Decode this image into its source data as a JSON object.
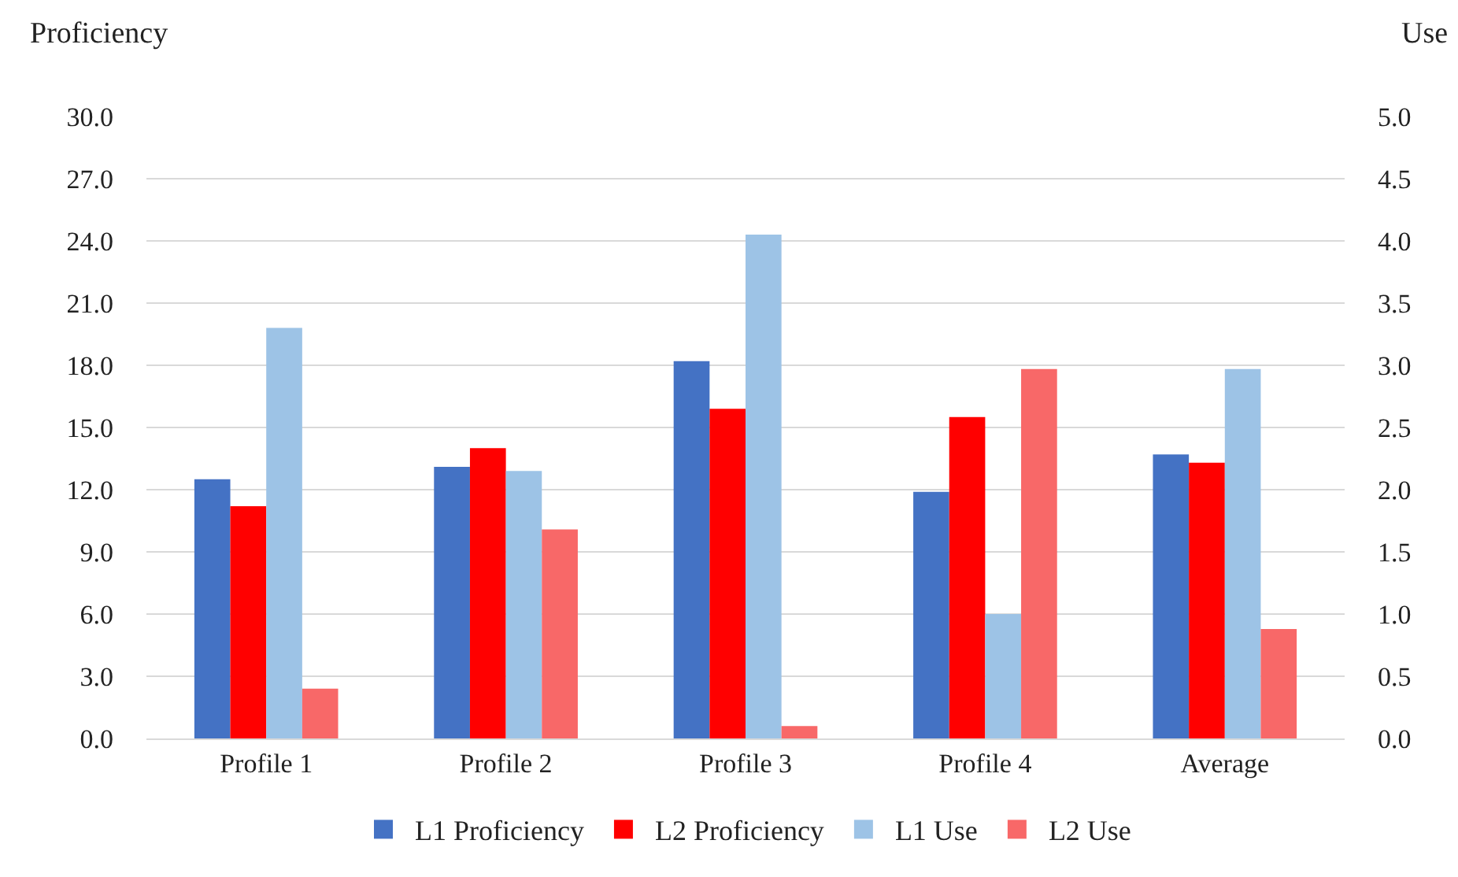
{
  "chart_data": {
    "type": "bar",
    "categories": [
      "Profile 1",
      "Profile 2",
      "Profile 3",
      "Profile 4",
      "Average"
    ],
    "series": [
      {
        "name": "L1 Proficiency",
        "color": "#4472c4",
        "values": [
          12.5,
          13.1,
          18.2,
          11.9,
          13.7
        ]
      },
      {
        "name": "L2 Proficiency",
        "color": "#ff0000",
        "values": [
          11.2,
          14.0,
          15.9,
          15.5,
          13.3
        ]
      },
      {
        "name": "L1 Use",
        "color": "#9dc3e6",
        "axis": "y2",
        "values": [
          3.3,
          2.15,
          4.05,
          1.0,
          2.97
        ]
      },
      {
        "name": "L2 Use",
        "color": "#f86868",
        "axis": "y2",
        "values": [
          0.4,
          1.68,
          0.1,
          2.97,
          0.88
        ]
      }
    ],
    "ylabel": "Proficiency",
    "y2label": "Use",
    "ylim": [
      0,
      30
    ],
    "yticks": [
      {
        "value": 0,
        "label": "0.0"
      },
      {
        "value": 3,
        "label": "3.0"
      },
      {
        "value": 6,
        "label": "6.0"
      },
      {
        "value": 9,
        "label": "9.0"
      },
      {
        "value": 12,
        "label": "12.0"
      },
      {
        "value": 15,
        "label": "15.0"
      },
      {
        "value": 18,
        "label": "18.0"
      },
      {
        "value": 21,
        "label": "21.0"
      },
      {
        "value": 24,
        "label": "24.0"
      },
      {
        "value": 27,
        "label": "27.0"
      },
      {
        "value": 30,
        "label": "30.0"
      }
    ],
    "y2lim": [
      0,
      5
    ],
    "y2ticks": [
      {
        "value": 0,
        "label": "0.0"
      },
      0.5,
      {
        "value": 1,
        "label": "1.0"
      },
      1.5,
      {
        "value": 2,
        "label": "2.0"
      },
      2.5,
      {
        "value": 3,
        "label": "3.0"
      },
      3.5,
      {
        "value": 4,
        "label": "4.0"
      },
      4.5,
      {
        "value": 5,
        "label": "5.0"
      }
    ],
    "grid": "y",
    "legend": "bottom"
  }
}
